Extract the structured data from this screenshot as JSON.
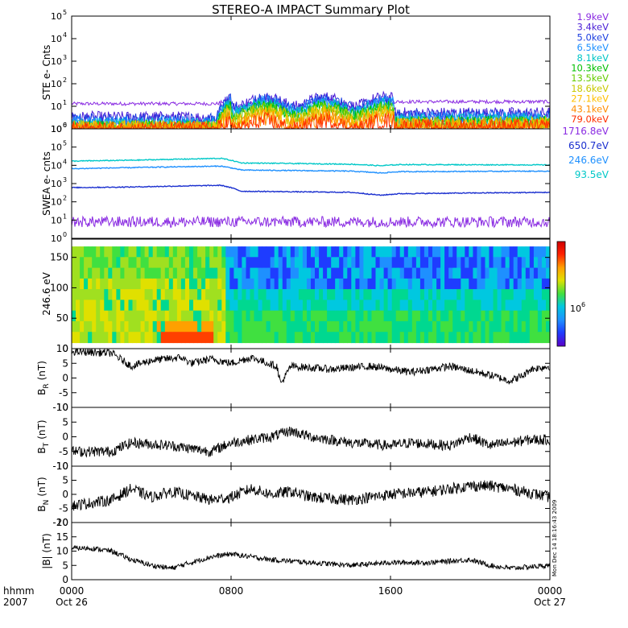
{
  "chart_data": {
    "type": "line",
    "title": "STEREO-A IMPACT Summary Plot",
    "x_ticks": [
      "0000",
      "0800",
      "1600",
      "0000"
    ],
    "x_tick_hours": [
      0,
      8,
      16,
      24
    ],
    "x_date_labels": {
      "left": "Oct 26",
      "right": "Oct 27"
    },
    "x_axis_label": "hhmm",
    "x_axis_year": "2007",
    "timestamp_label": "Mon Dec 14 18:16:43 2009",
    "panels": [
      {
        "id": "ste",
        "ylabel": "STE e- Cnts",
        "scale": "log",
        "ylim_exp": [
          0,
          5
        ],
        "ytick_labels": [
          "10",
          "10",
          "10",
          "10",
          "10",
          "10"
        ],
        "ytick_exps": [
          "0",
          "1",
          "2",
          "3",
          "4",
          "5"
        ],
        "series": [
          {
            "name": "1.9keV",
            "color": "#8a2be2",
            "base": 13,
            "event": 20
          },
          {
            "name": "3.4keV",
            "color": "#4b1fd6",
            "base": 3.2,
            "event": 24
          },
          {
            "name": "5.0keV",
            "color": "#1c3ee0",
            "base": 2.6,
            "event": 20
          },
          {
            "name": "6.5keV",
            "color": "#1e90ff",
            "base": 2.0,
            "event": 16
          },
          {
            "name": "8.1keV",
            "color": "#00c6c6",
            "base": 1.6,
            "event": 13
          },
          {
            "name": "10.3keV",
            "color": "#00c000",
            "base": 1.3,
            "event": 10
          },
          {
            "name": "13.5keV",
            "color": "#66cc00",
            "base": 1.15,
            "event": 8
          },
          {
            "name": "18.6keV",
            "color": "#c8c800",
            "base": 1.05,
            "event": 6
          },
          {
            "name": "27.1keV",
            "color": "#ffc000",
            "base": 1.0,
            "event": 4.5
          },
          {
            "name": "43.1keV",
            "color": "#ff8c00",
            "base": 0.95,
            "event": 3.2
          },
          {
            "name": "79.0keV",
            "color": "#ff3000",
            "base": 0.9,
            "event": 2.2
          }
        ]
      },
      {
        "id": "swea",
        "ylabel": "SWEA e- cnts",
        "scale": "log",
        "ylim_exp": [
          0,
          6
        ],
        "ytick_labels": [
          "10",
          "10",
          "10",
          "10",
          "10",
          "10",
          "10"
        ],
        "ytick_exps": [
          "0",
          "1",
          "2",
          "3",
          "4",
          "5",
          "6"
        ],
        "series": [
          {
            "name": "1716.8eV",
            "color": "#8a2be2",
            "level": [
              [
                0,
                8
              ],
              [
                24,
                8
              ]
            ]
          },
          {
            "name": "650.7eV",
            "color": "#1a2fcf",
            "level": [
              [
                0,
                600
              ],
              [
                3,
                650
              ],
              [
                7.5,
                800
              ],
              [
                8.5,
                380
              ],
              [
                14,
                330
              ],
              [
                15.5,
                230
              ],
              [
                16.5,
                280
              ],
              [
                24,
                330
              ]
            ]
          },
          {
            "name": "246.6eV",
            "color": "#1e90ff",
            "level": [
              [
                0,
                6500
              ],
              [
                3,
                7500
              ],
              [
                7.5,
                9000
              ],
              [
                8.5,
                5500
              ],
              [
                14,
                4800
              ],
              [
                15.5,
                3800
              ],
              [
                16.5,
                4500
              ],
              [
                24,
                4800
              ]
            ]
          },
          {
            "name": "93.5eV",
            "color": "#00c8c8",
            "level": [
              [
                0,
                17000
              ],
              [
                3,
                19000
              ],
              [
                7.5,
                24000
              ],
              [
                8.5,
                13500
              ],
              [
                14,
                11500
              ],
              [
                15.5,
                9500
              ],
              [
                16.5,
                11000
              ],
              [
                24,
                10500
              ]
            ]
          }
        ]
      },
      {
        "id": "pad",
        "ylabel": "246.6 eV",
        "scale": "linear",
        "ylim": [
          0,
          180
        ],
        "ytick_labels": [
          "0",
          "50",
          "100",
          "150"
        ],
        "yticks": [
          0,
          50,
          100,
          150
        ],
        "colorbar_label": "10",
        "colorbar_label_exp": "6"
      },
      {
        "id": "br",
        "ylabel": "B",
        "ylabel_sub": "R",
        "ylabel_unit": "(nT)",
        "scale": "linear",
        "ylim": [
          -10,
          10
        ],
        "ytick_labels": [
          "10",
          "5",
          "0",
          "-5",
          "-10"
        ],
        "yticks": [
          10,
          5,
          0,
          -5,
          -10
        ],
        "trend": [
          [
            0,
            9
          ],
          [
            2,
            8.5
          ],
          [
            3,
            4
          ],
          [
            4,
            6
          ],
          [
            5.5,
            7
          ],
          [
            6,
            5
          ],
          [
            7,
            6.5
          ],
          [
            8,
            5
          ],
          [
            9,
            7
          ],
          [
            10.3,
            4
          ],
          [
            10.5,
            -2
          ],
          [
            11,
            4
          ],
          [
            13,
            3
          ],
          [
            15,
            4
          ],
          [
            17,
            2
          ],
          [
            19,
            4
          ],
          [
            21,
            1
          ],
          [
            22,
            -1
          ],
          [
            22.7,
            1
          ],
          [
            23,
            3
          ],
          [
            24,
            4
          ]
        ],
        "noise": 1.3
      },
      {
        "id": "bt",
        "ylabel": "B",
        "ylabel_sub": "T",
        "ylabel_unit": "(nT)",
        "scale": "linear",
        "ylim": [
          -10,
          10
        ],
        "ytick_labels": [
          "10",
          "5",
          "0",
          "-5",
          "-10"
        ],
        "yticks": [
          10,
          5,
          0,
          -5,
          -10
        ],
        "trend": [
          [
            0,
            -5
          ],
          [
            2,
            -5
          ],
          [
            3,
            -2
          ],
          [
            5,
            -3
          ],
          [
            7,
            -5
          ],
          [
            8,
            -2
          ],
          [
            9,
            -1
          ],
          [
            10,
            0
          ],
          [
            11,
            2
          ],
          [
            12,
            0
          ],
          [
            13,
            -1
          ],
          [
            14,
            -2
          ],
          [
            16,
            -3
          ],
          [
            17,
            -2
          ],
          [
            19,
            -3
          ],
          [
            20,
            0
          ],
          [
            21,
            -3
          ],
          [
            23,
            -1
          ],
          [
            24,
            -1
          ]
        ],
        "noise": 1.8
      },
      {
        "id": "bn",
        "ylabel": "B",
        "ylabel_sub": "N",
        "ylabel_unit": "(nT)",
        "scale": "linear",
        "ylim": [
          -10,
          10
        ],
        "ytick_labels": [
          "10",
          "5",
          "0",
          "-5",
          "-10"
        ],
        "yticks": [
          10,
          5,
          0,
          -5,
          -10
        ],
        "trend": [
          [
            0,
            -4
          ],
          [
            2,
            -2
          ],
          [
            3,
            2
          ],
          [
            4,
            -1
          ],
          [
            5,
            1
          ],
          [
            7,
            -2
          ],
          [
            8,
            -1
          ],
          [
            9,
            2
          ],
          [
            10,
            0
          ],
          [
            11,
            1
          ],
          [
            12,
            -1
          ],
          [
            14,
            -2
          ],
          [
            16,
            0
          ],
          [
            18,
            1
          ],
          [
            19,
            2
          ],
          [
            20,
            3
          ],
          [
            21,
            3
          ],
          [
            22,
            2
          ],
          [
            24,
            -1
          ]
        ],
        "noise": 2.0
      },
      {
        "id": "bmag",
        "ylabel": "|B| (nT)",
        "scale": "linear",
        "ylim": [
          0,
          20
        ],
        "ytick_labels": [
          "20",
          "15",
          "10",
          "5",
          "0"
        ],
        "yticks": [
          20,
          15,
          10,
          5,
          0
        ],
        "trend": [
          [
            0,
            11
          ],
          [
            1,
            11
          ],
          [
            2,
            10
          ],
          [
            3,
            7
          ],
          [
            4,
            5
          ],
          [
            5,
            4
          ],
          [
            6,
            6
          ],
          [
            7,
            8
          ],
          [
            8,
            9
          ],
          [
            9,
            8
          ],
          [
            10,
            7
          ],
          [
            12,
            6
          ],
          [
            14,
            5
          ],
          [
            16,
            6
          ],
          [
            18,
            6
          ],
          [
            20,
            7
          ],
          [
            21,
            5
          ],
          [
            22,
            4
          ],
          [
            24,
            5
          ]
        ],
        "noise": 0.9
      }
    ]
  }
}
